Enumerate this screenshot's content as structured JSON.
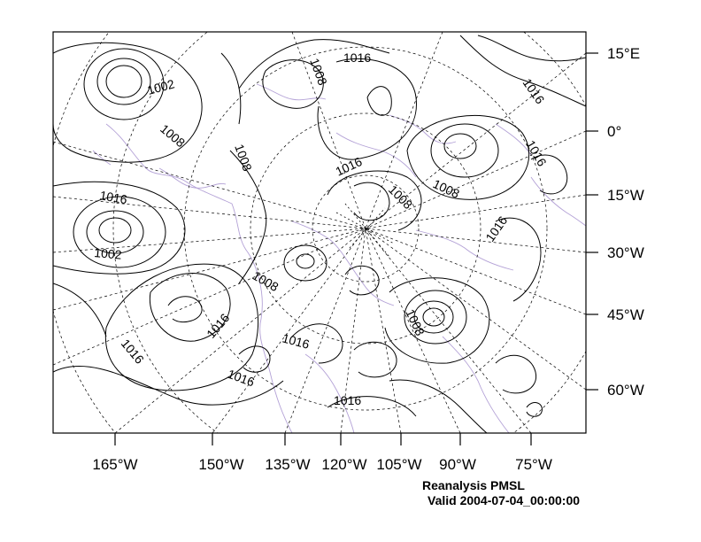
{
  "map": {
    "field": "PMSL",
    "x_axis_labels": [
      "165°W",
      "150°W",
      "135°W",
      "120°W",
      "105°W",
      "90°W",
      "75°W"
    ],
    "y_axis_labels": [
      "15°E",
      "0°",
      "15°W",
      "30°W",
      "45°W",
      "60°W"
    ],
    "contour_labels": [
      "1002",
      "1008",
      "1008",
      "1016",
      "1016",
      "1008",
      "1016",
      "1008",
      "1016",
      "1008",
      "1016",
      "1002",
      "1016",
      "1008",
      "1016",
      "1008",
      "1016",
      "1016",
      "1016",
      "1016"
    ],
    "colors": {
      "contour": "#000000",
      "coastline": "#b3a1d6",
      "graticule": "#000000",
      "background": "#ffffff"
    }
  },
  "caption": {
    "title": "Reanalysis PMSL",
    "valid": "Valid 2004-07-04_00:00:00"
  }
}
